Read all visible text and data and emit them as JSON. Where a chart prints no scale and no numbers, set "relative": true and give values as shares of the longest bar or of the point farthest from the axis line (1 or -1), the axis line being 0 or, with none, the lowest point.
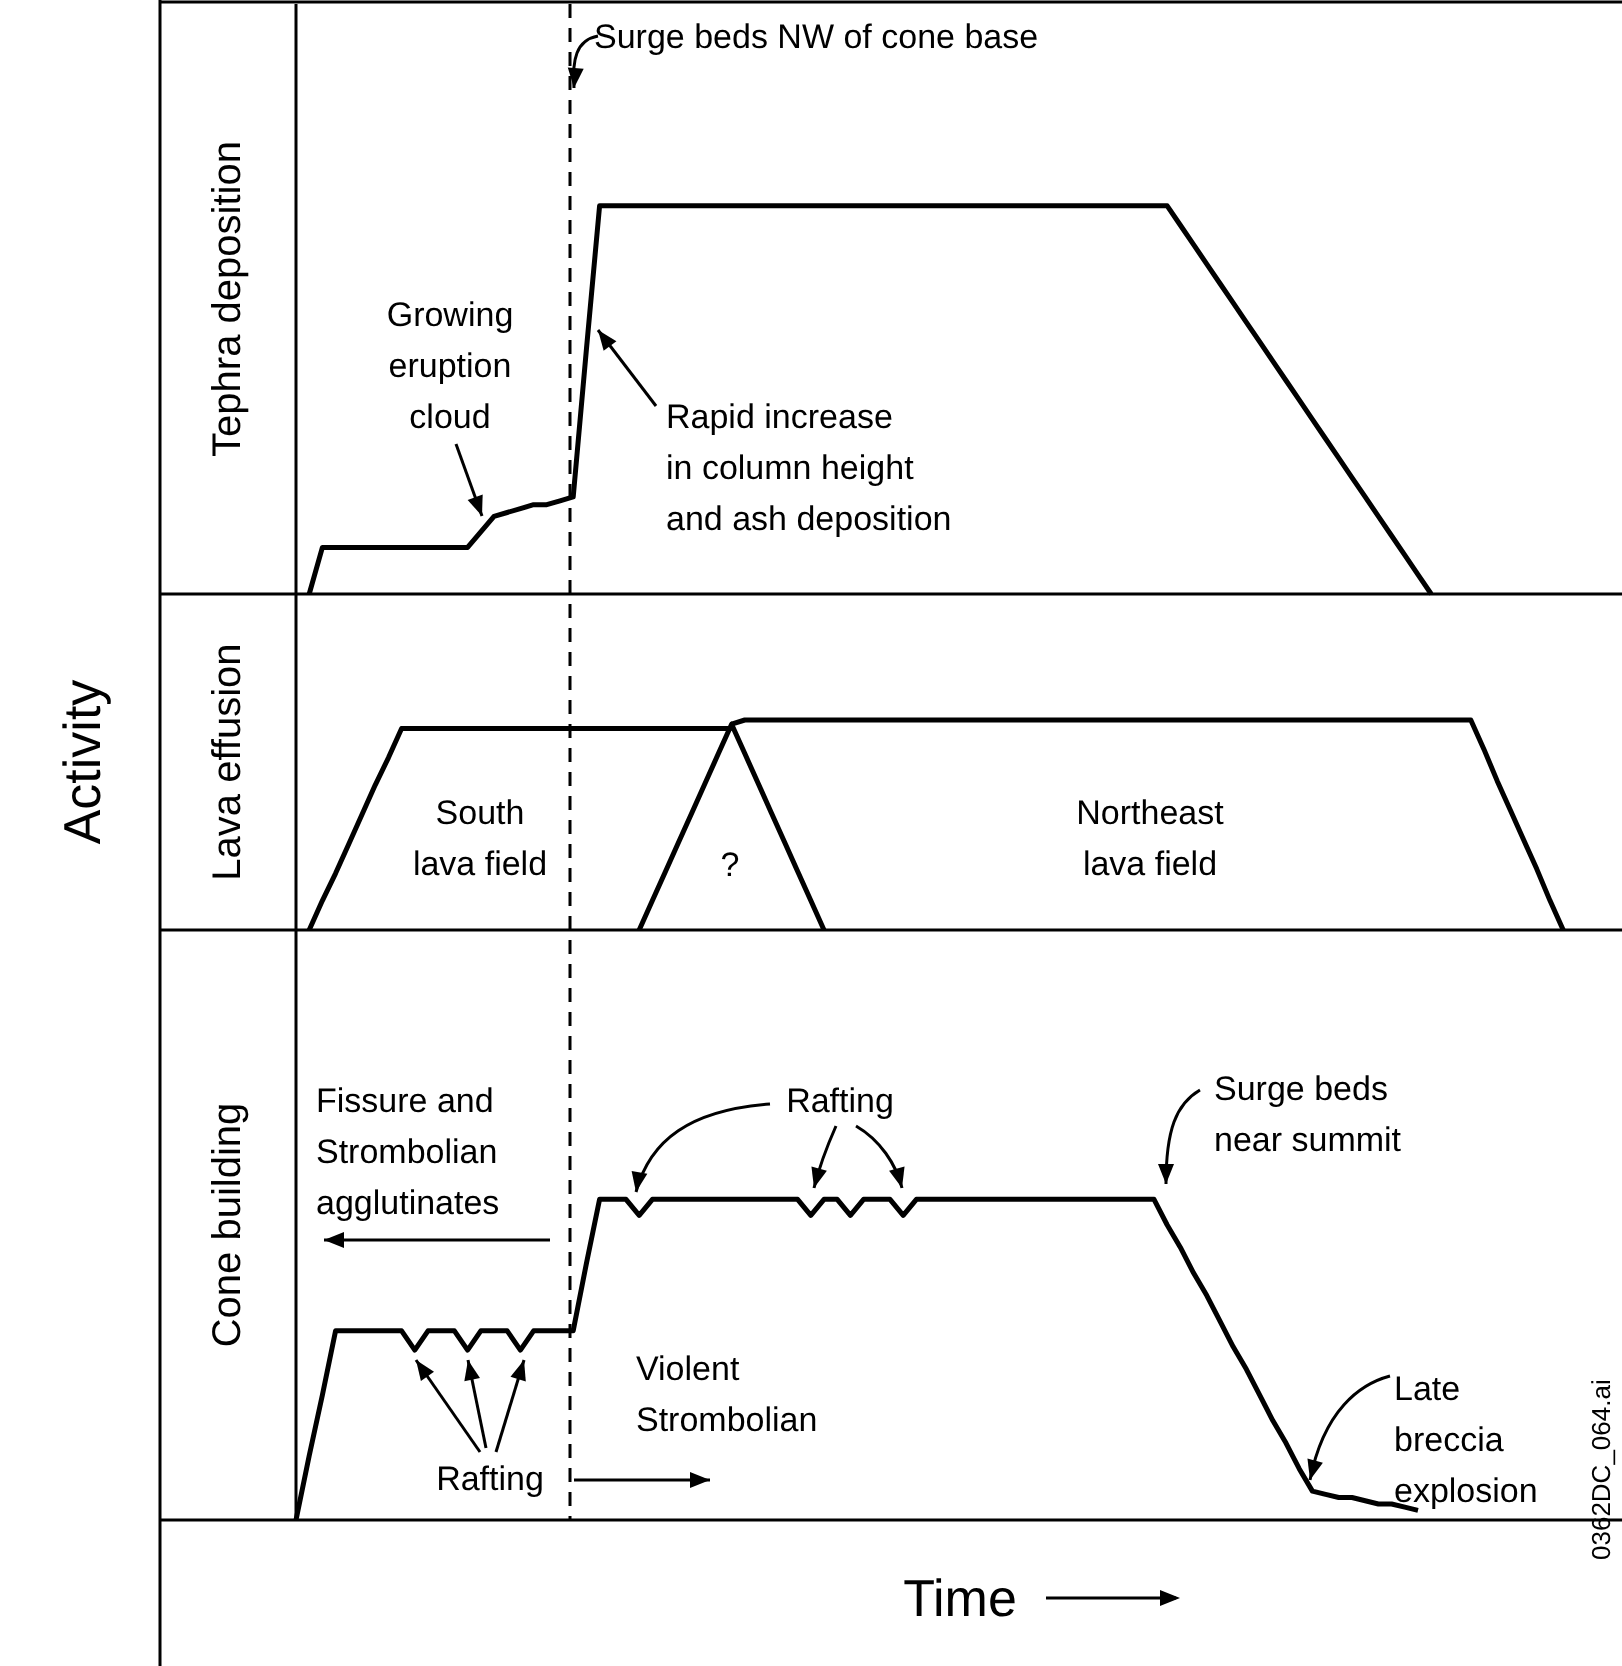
{
  "chart_data": [
    {
      "type": "line",
      "relative": true,
      "ylabel": "Tephra deposition",
      "categories": [
        null,
        null,
        null,
        null,
        null,
        null,
        null,
        null,
        null,
        null,
        null,
        null,
        null,
        null,
        null,
        null,
        null,
        null,
        null,
        null,
        null,
        null,
        null,
        null,
        null,
        null,
        null,
        null,
        null,
        null,
        null,
        null,
        null,
        null,
        null,
        null,
        null,
        null,
        null,
        null,
        null,
        null,
        null,
        null,
        null,
        null,
        null,
        null,
        null,
        null,
        null,
        null,
        null,
        null,
        null,
        null,
        null,
        null,
        null,
        null,
        null,
        null,
        null,
        null,
        null,
        null,
        null,
        null,
        null,
        null,
        null,
        null,
        null,
        null,
        null,
        null,
        null,
        null,
        null,
        null,
        null,
        null,
        null,
        null,
        null,
        null,
        null,
        null,
        null,
        null,
        null,
        null,
        null,
        null,
        null,
        null,
        null,
        null,
        null,
        null,
        null
      ],
      "series": [
        {
          "color": "#000000",
          "values": [
            null,
            0,
            0.12,
            0.12,
            0.12,
            0.12,
            0.12,
            0.12,
            0.12,
            0.12,
            0.12,
            0.12,
            0.12,
            0.12,
            0.16,
            0.2,
            0.21,
            0.22,
            0.23,
            0.23,
            0.24,
            0.25,
            0.63,
            1,
            1,
            1,
            1,
            1,
            1,
            1,
            1,
            1,
            1,
            1,
            1,
            1,
            1,
            1,
            1,
            1,
            1,
            1,
            1,
            1,
            1,
            1,
            1,
            1,
            1,
            1,
            1,
            1,
            1,
            1,
            1,
            1,
            1,
            1,
            1,
            1,
            1,
            1,
            1,
            1,
            1,
            1,
            1,
            0.95,
            0.9,
            0.85,
            0.8,
            0.75,
            0.7,
            0.65,
            0.6,
            0.55,
            0.5,
            0.45,
            0.4,
            0.35,
            0.3,
            0.25,
            0.2,
            0.15,
            0.1,
            0.05,
            0,
            null,
            null,
            null,
            null,
            null,
            null,
            null,
            null,
            null,
            null,
            null,
            null,
            null,
            null
          ]
        }
      ],
      "annotations": [
        "Surge beds NW of cone base",
        "Growing\neruption\ncloud",
        "Rapid increase\nin column height\nand ash deposition"
      ]
    },
    {
      "type": "line",
      "relative": true,
      "ylabel": "Lava effusion",
      "categories": [
        null,
        null,
        null,
        null,
        null,
        null,
        null,
        null,
        null,
        null,
        null,
        null,
        null,
        null,
        null,
        null,
        null,
        null,
        null,
        null,
        null,
        null,
        null,
        null,
        null,
        null,
        null,
        null,
        null,
        null,
        null,
        null,
        null,
        null,
        null,
        null,
        null,
        null,
        null,
        null,
        null,
        null,
        null,
        null,
        null,
        null,
        null,
        null,
        null,
        null,
        null,
        null,
        null,
        null,
        null,
        null,
        null,
        null,
        null,
        null,
        null,
        null,
        null,
        null,
        null,
        null,
        null,
        null,
        null,
        null,
        null,
        null,
        null,
        null,
        null,
        null,
        null,
        null,
        null,
        null,
        null,
        null,
        null,
        null,
        null,
        null,
        null,
        null,
        null,
        null,
        null,
        null,
        null,
        null,
        null,
        null,
        null,
        null,
        null,
        null,
        null
      ],
      "series": [
        {
          "color": "#000000",
          "values": [
            null,
            0,
            0.14,
            0.27,
            0.41,
            0.55,
            0.69,
            0.82,
            0.96,
            0.96,
            0.96,
            0.96,
            0.96,
            0.96,
            0.96,
            0.96,
            0.96,
            0.96,
            0.96,
            0.96,
            0.96,
            0.96,
            0.96,
            0.96,
            0.96,
            0.96,
            0.96,
            0.96,
            0.96,
            0.96,
            0.96,
            0.96,
            0.96,
            0.96,
            null,
            null,
            null,
            null,
            null,
            null,
            null,
            null,
            null,
            null,
            null,
            null,
            null,
            null,
            null,
            null,
            null,
            null,
            null,
            null,
            null,
            null,
            null,
            null,
            null,
            null,
            null,
            null,
            null,
            null,
            null,
            null,
            null,
            null,
            null,
            null,
            null,
            null,
            null,
            null,
            null,
            null,
            null,
            null,
            null,
            null,
            null,
            null,
            null,
            null,
            null,
            null,
            null,
            null,
            null,
            null,
            null,
            null,
            null,
            null,
            null,
            null,
            null,
            null,
            null,
            null,
            null
          ]
        },
        {
          "color": "#000000",
          "values": [
            null,
            null,
            null,
            null,
            null,
            null,
            null,
            null,
            null,
            null,
            null,
            null,
            null,
            null,
            null,
            null,
            null,
            null,
            null,
            null,
            null,
            null,
            null,
            null,
            null,
            null,
            0,
            0.14,
            0.28,
            0.42,
            0.56,
            0.7,
            0.84,
            0.98,
            0.84,
            0.7,
            0.56,
            0.42,
            0.28,
            0.14,
            0,
            null,
            null,
            null,
            null,
            null,
            null,
            null,
            null,
            null,
            null,
            null,
            null,
            null,
            null,
            null,
            null,
            null,
            null,
            null,
            null,
            null,
            null,
            null,
            null,
            null,
            null,
            null,
            null,
            null,
            null,
            null,
            null,
            null,
            null,
            null,
            null,
            null,
            null,
            null,
            null,
            null,
            null,
            null,
            null,
            null,
            null,
            null,
            null,
            null,
            null,
            null,
            null,
            null,
            null,
            null,
            null,
            null,
            null,
            null,
            null
          ]
        },
        {
          "color": "#000000",
          "values": [
            null,
            null,
            null,
            null,
            null,
            null,
            null,
            null,
            null,
            null,
            null,
            null,
            null,
            null,
            null,
            null,
            null,
            null,
            null,
            null,
            null,
            null,
            null,
            null,
            null,
            null,
            null,
            null,
            null,
            null,
            null,
            null,
            null,
            0.98,
            1,
            1,
            1,
            1,
            1,
            1,
            1,
            1,
            1,
            1,
            1,
            1,
            1,
            1,
            1,
            1,
            1,
            1,
            1,
            1,
            1,
            1,
            1,
            1,
            1,
            1,
            1,
            1,
            1,
            1,
            1,
            1,
            1,
            1,
            1,
            1,
            1,
            1,
            1,
            1,
            1,
            1,
            1,
            1,
            1,
            1,
            1,
            1,
            1,
            1,
            1,
            1,
            1,
            1,
            1,
            1,
            0.86,
            0.71,
            0.57,
            0.43,
            0.29,
            0.14,
            0,
            null,
            null,
            null,
            null
          ]
        }
      ],
      "annotations": [
        "South\nlava field",
        "?",
        "Northeast\nlava field",
        "Activity"
      ]
    },
    {
      "type": "line",
      "relative": true,
      "ylabel": "Cone building",
      "xlabel": "Time",
      "categories": [
        null,
        null,
        null,
        null,
        null,
        null,
        null,
        null,
        null,
        null,
        null,
        null,
        null,
        null,
        null,
        null,
        null,
        null,
        null,
        null,
        null,
        null,
        null,
        null,
        null,
        null,
        null,
        null,
        null,
        null,
        null,
        null,
        null,
        null,
        null,
        null,
        null,
        null,
        null,
        null,
        null,
        null,
        null,
        null,
        null,
        null,
        null,
        null,
        null,
        null,
        null,
        null,
        null,
        null,
        null,
        null,
        null,
        null,
        null,
        null,
        null,
        null,
        null,
        null,
        null,
        null,
        null,
        null,
        null,
        null,
        null,
        null,
        null,
        null,
        null,
        null,
        null,
        null,
        null,
        null,
        null,
        null,
        null,
        null,
        null,
        null,
        null,
        null,
        null,
        null,
        null,
        null,
        null,
        null,
        null,
        null,
        null,
        null,
        null,
        null,
        null
      ],
      "series": [
        {
          "color": "#000000",
          "values": [
            0,
            0.2,
            0.39,
            0.59,
            0.59,
            0.59,
            0.59,
            0.59,
            0.59,
            0.53,
            0.59,
            0.59,
            0.59,
            0.53,
            0.59,
            0.59,
            0.59,
            0.53,
            0.59,
            0.59,
            0.59,
            0.59,
            0.8,
            1,
            1,
            1,
            0.95,
            1,
            1,
            1,
            1,
            1,
            1,
            1,
            1,
            1,
            1,
            1,
            1,
            0.95,
            1,
            1,
            0.95,
            1,
            1,
            1,
            0.95,
            1,
            1,
            1,
            1,
            1,
            1,
            1,
            1,
            1,
            1,
            1,
            1,
            1,
            1,
            1,
            1,
            1,
            1,
            1,
            0.92,
            0.85,
            0.77,
            0.7,
            0.62,
            0.54,
            0.47,
            0.39,
            0.31,
            0.24,
            0.16,
            0.09,
            0.08,
            0.07,
            0.07,
            0.06,
            0.05,
            0.05,
            0.04,
            0.03,
            null,
            null,
            null,
            null,
            null,
            null,
            null,
            null,
            null,
            null,
            null,
            null,
            null,
            null,
            null
          ]
        }
      ],
      "annotations": [
        "Fissure and\nStrombolian\nagglutinates",
        "Rafting",
        "Surge beds\nnear summit",
        "Violent\nStrombolian",
        "Rafting",
        "Late\nbreccia\nexplosion",
        "0362DC_064.ai"
      ]
    }
  ]
}
